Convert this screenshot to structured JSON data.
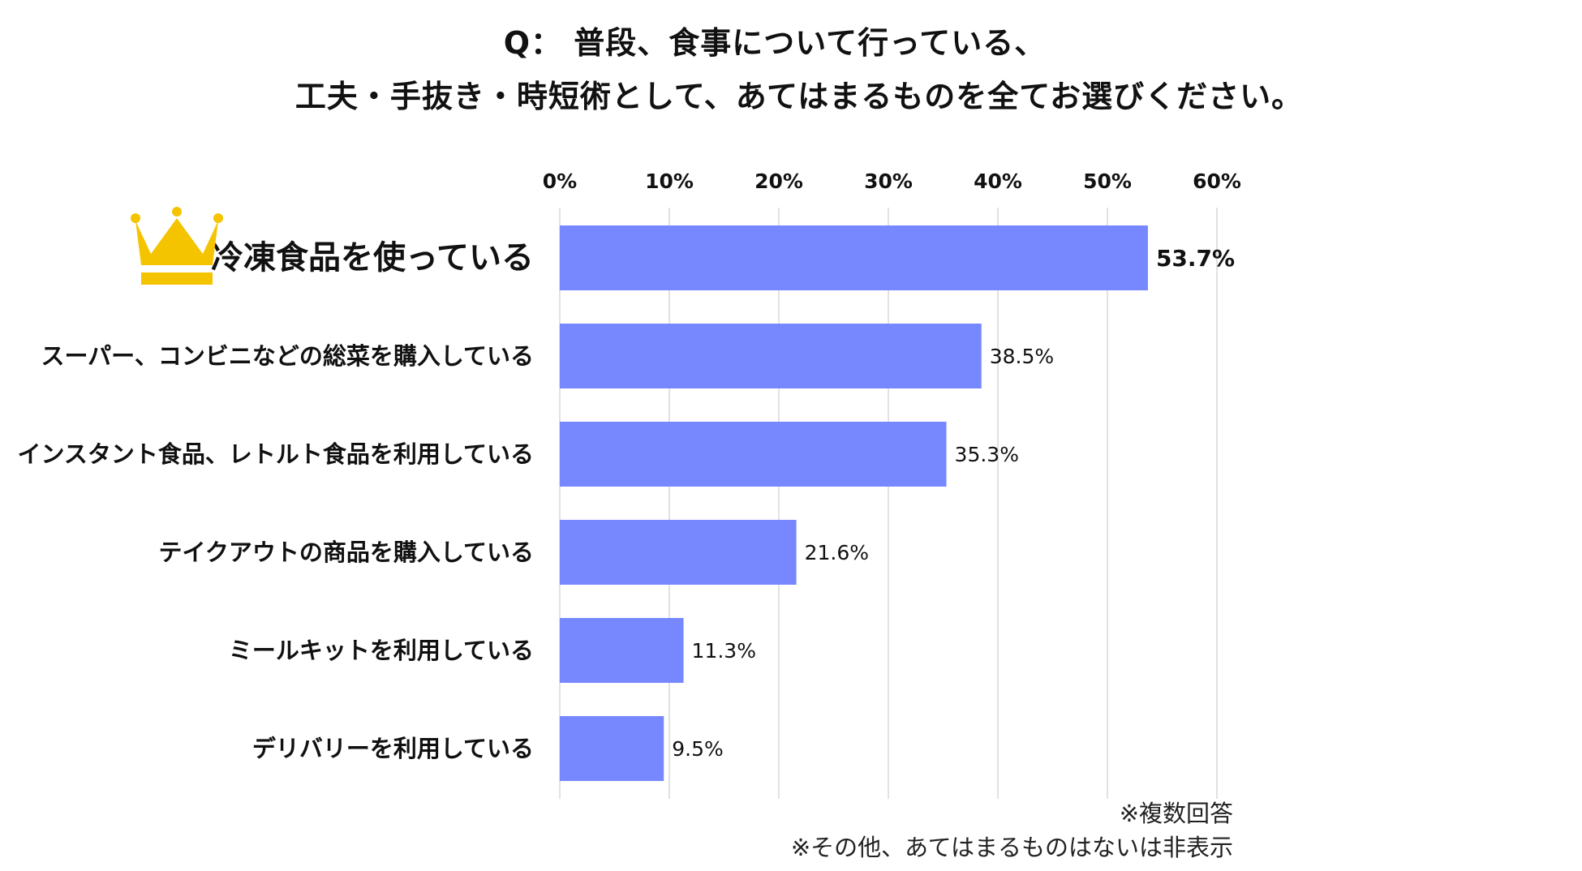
{
  "title": {
    "line1": "Q： 普段、食事について行っている、",
    "line2": "工夫・手抜き・時短術として、あてはまるものを全てお選びください。"
  },
  "colors": {
    "bar": "#7788FF",
    "grid": "#D9D9D9",
    "crown": "#F5C400",
    "text": "#111111"
  },
  "icons": {
    "crown": "crown-icon"
  },
  "chart_data": {
    "type": "bar",
    "orientation": "horizontal",
    "categories": [
      "冷凍食品を使っている",
      "スーパー、コンビニなどの総菜を購入している",
      "インスタント食品、レトルト食品を利用している",
      "テイクアウトの商品を購入している",
      "ミールキットを利用している",
      "デリバリーを利用している"
    ],
    "values": [
      53.7,
      38.5,
      35.3,
      21.6,
      11.3,
      9.5
    ],
    "value_labels": [
      "53.7%",
      "38.5%",
      "35.3%",
      "21.6%",
      "11.3%",
      "9.5%"
    ],
    "xlim": [
      0,
      60
    ],
    "ticks": [
      0,
      10,
      20,
      30,
      40,
      50,
      60
    ],
    "tick_labels": [
      "0%",
      "10%",
      "20%",
      "30%",
      "40%",
      "50%",
      "60%"
    ],
    "grid": true,
    "axis_position": "top",
    "highlight_index": 0
  },
  "notes": {
    "multiple_answer": "※複数回答",
    "hidden": "※その他、あてはまるものはないは非表示"
  }
}
